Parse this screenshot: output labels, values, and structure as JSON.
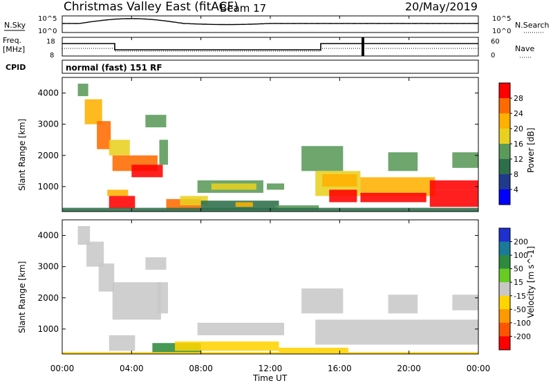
{
  "header": {
    "station": "Christmas Valley East (fitACF)",
    "beam": "Beam 17",
    "date": "20/May/2019"
  },
  "panels": {
    "nsky_label": "N.Sky",
    "nsky_ticks": [
      "10^5",
      "10^0"
    ],
    "nsearch_label": "N.Search",
    "nsearch_ticks": [
      "10^5",
      "10^0"
    ],
    "freq_label_1": "Freq.",
    "freq_label_2": "[MHz]",
    "freq_ticks": [
      "18",
      "8"
    ],
    "nave_label": "Nave",
    "nave_ticks": [
      "60",
      "0"
    ],
    "cpid_label": "CPID",
    "cpid_value": "normal (fast) 151 RF"
  },
  "axes": {
    "xlabel": "Time UT",
    "xticks": [
      "00:00",
      "04:00",
      "08:00",
      "12:00",
      "16:00",
      "20:00",
      "00:00"
    ],
    "ylabel": "Slant Range [km]",
    "yticks": [
      "1000",
      "2000",
      "3000",
      "4000"
    ]
  },
  "colorbars": {
    "power": {
      "label": "Power [dB]",
      "ticks": [
        "28",
        "24",
        "20",
        "16",
        "12",
        "8",
        "4"
      ],
      "colors": [
        "#ff0000",
        "#ff6a00",
        "#ffb000",
        "#e8d020",
        "#5a9a5a",
        "#2e6e4a",
        "#203a8e",
        "#0000ff"
      ]
    },
    "velocity": {
      "label": "Velocity [m s^-1]",
      "ticks": [
        "200",
        "100",
        "50",
        "15",
        "-15",
        "-50",
        "-100",
        "-200"
      ],
      "colors": [
        "#1f2fd0",
        "#1a7a9a",
        "#2e8b3e",
        "#66cc22",
        "#c8c8c8",
        "#ffd400",
        "#ff9900",
        "#ff5500",
        "#ff0000"
      ]
    }
  },
  "chart_data": [
    {
      "type": "heatmap",
      "title": "Power",
      "xlim": [
        "00:00",
        "24:00"
      ],
      "ylim": [
        200,
        4500
      ],
      "cells": [
        {
          "t0": 0.9,
          "t1": 1.5,
          "r0": 3900,
          "r1": 4300,
          "level": 12
        },
        {
          "t0": 1.3,
          "t1": 2.3,
          "r0": 3000,
          "r1": 3800,
          "level": 20
        },
        {
          "t0": 2.0,
          "t1": 2.8,
          "r0": 2200,
          "r1": 3100,
          "level": 24
        },
        {
          "t0": 2.7,
          "t1": 3.9,
          "r0": 2000,
          "r1": 2500,
          "level": 16
        },
        {
          "t0": 2.9,
          "t1": 5.5,
          "r0": 1500,
          "r1": 2000,
          "level": 24
        },
        {
          "t0": 4.0,
          "t1": 5.8,
          "r0": 1300,
          "r1": 1700,
          "level": 28
        },
        {
          "t0": 5.6,
          "t1": 6.1,
          "r0": 1700,
          "r1": 2500,
          "level": 12
        },
        {
          "t0": 4.8,
          "t1": 6.0,
          "r0": 2900,
          "r1": 3300,
          "level": 12
        },
        {
          "t0": 2.6,
          "t1": 3.8,
          "r0": 700,
          "r1": 900,
          "level": 20
        },
        {
          "t0": 2.7,
          "t1": 4.2,
          "r0": 300,
          "r1": 700,
          "level": 28
        },
        {
          "t0": 6.0,
          "t1": 8.0,
          "r0": 250,
          "r1": 600,
          "level": 24
        },
        {
          "t0": 6.8,
          "t1": 8.4,
          "r0": 400,
          "r1": 700,
          "level": 16
        },
        {
          "t0": 7.8,
          "t1": 11.6,
          "r0": 800,
          "r1": 1200,
          "level": 12
        },
        {
          "t0": 8.6,
          "t1": 11.2,
          "r0": 900,
          "r1": 1100,
          "level": 16
        },
        {
          "t0": 11.8,
          "t1": 12.8,
          "r0": 900,
          "r1": 1100,
          "level": 12
        },
        {
          "t0": 8.0,
          "t1": 12.5,
          "r0": 250,
          "r1": 550,
          "level": 8
        },
        {
          "t0": 10.0,
          "t1": 11.0,
          "r0": 350,
          "r1": 500,
          "level": 20
        },
        {
          "t0": 12.3,
          "t1": 14.8,
          "r0": 250,
          "r1": 400,
          "level": 12
        },
        {
          "t0": 13.8,
          "t1": 16.2,
          "r0": 1500,
          "r1": 2300,
          "level": 12
        },
        {
          "t0": 14.6,
          "t1": 17.2,
          "r0": 700,
          "r1": 1500,
          "level": 16
        },
        {
          "t0": 15.0,
          "t1": 17.0,
          "r0": 1000,
          "r1": 1400,
          "level": 20
        },
        {
          "t0": 15.4,
          "t1": 17.0,
          "r0": 500,
          "r1": 900,
          "level": 28
        },
        {
          "t0": 17.2,
          "t1": 21.5,
          "r0": 700,
          "r1": 1300,
          "level": 20
        },
        {
          "t0": 17.2,
          "t1": 21.0,
          "r0": 500,
          "r1": 800,
          "level": 28
        },
        {
          "t0": 18.8,
          "t1": 20.5,
          "r0": 1500,
          "r1": 2100,
          "level": 12
        },
        {
          "t0": 21.2,
          "t1": 24.0,
          "r0": 900,
          "r1": 1200,
          "level": 28
        },
        {
          "t0": 21.2,
          "t1": 24.0,
          "r0": 350,
          "r1": 900,
          "level": 28
        },
        {
          "t0": 22.5,
          "t1": 24.0,
          "r0": 1600,
          "r1": 2100,
          "level": 12
        },
        {
          "t0": 0.0,
          "t1": 24.0,
          "r0": 200,
          "r1": 320,
          "level": 8
        }
      ]
    },
    {
      "type": "heatmap",
      "title": "Velocity",
      "xlim": [
        "00:00",
        "24:00"
      ],
      "ylim": [
        200,
        4500
      ],
      "cells": [
        {
          "t0": 0.9,
          "t1": 1.6,
          "r0": 3700,
          "r1": 4300,
          "v": 0
        },
        {
          "t0": 1.4,
          "t1": 2.4,
          "r0": 3000,
          "r1": 3800,
          "v": 0
        },
        {
          "t0": 2.1,
          "t1": 3.0,
          "r0": 2200,
          "r1": 3100,
          "v": 0
        },
        {
          "t0": 2.9,
          "t1": 5.7,
          "r0": 1300,
          "r1": 2500,
          "v": 0
        },
        {
          "t0": 5.5,
          "t1": 6.1,
          "r0": 1500,
          "r1": 2500,
          "v": 0
        },
        {
          "t0": 4.8,
          "t1": 6.0,
          "r0": 2900,
          "r1": 3300,
          "v": 0
        },
        {
          "t0": 2.7,
          "t1": 4.2,
          "r0": 300,
          "r1": 800,
          "v": 0
        },
        {
          "t0": 5.2,
          "t1": 8.0,
          "r0": 250,
          "r1": 550,
          "v": 60
        },
        {
          "t0": 7.8,
          "t1": 12.8,
          "r0": 800,
          "r1": 1200,
          "v": 0
        },
        {
          "t0": 6.5,
          "t1": 12.5,
          "r0": 300,
          "r1": 600,
          "v": -20
        },
        {
          "t0": 12.5,
          "t1": 16.5,
          "r0": 250,
          "r1": 400,
          "v": -20
        },
        {
          "t0": 13.8,
          "t1": 16.2,
          "r0": 1500,
          "r1": 2300,
          "v": 0
        },
        {
          "t0": 14.6,
          "t1": 24.0,
          "r0": 500,
          "r1": 1300,
          "v": 0
        },
        {
          "t0": 18.8,
          "t1": 20.5,
          "r0": 1500,
          "r1": 2100,
          "v": 0
        },
        {
          "t0": 22.5,
          "t1": 24.0,
          "r0": 1600,
          "r1": 2100,
          "v": 0
        },
        {
          "t0": 0.0,
          "t1": 24.0,
          "r0": 200,
          "r1": 260,
          "v": -20
        }
      ]
    }
  ]
}
